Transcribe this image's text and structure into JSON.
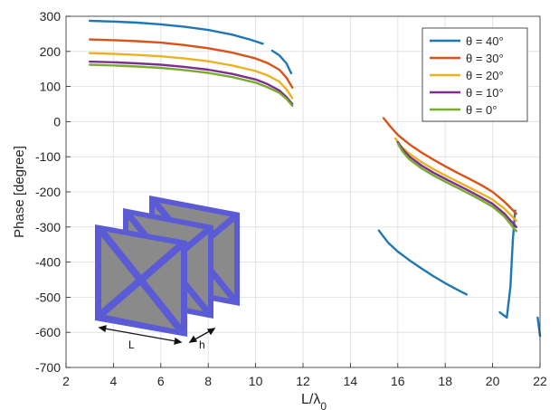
{
  "chart_data": {
    "type": "line",
    "xlabel": "L/λ0",
    "ylabel": "Phase [degree]",
    "xlim": [
      2,
      22
    ],
    "ylim": [
      -700,
      300
    ],
    "grid": true,
    "legend_position": "top-right",
    "x_ticks": [
      2,
      4,
      6,
      8,
      10,
      12,
      14,
      16,
      18,
      20,
      22
    ],
    "y_ticks": [
      300,
      200,
      100,
      0,
      -100,
      -200,
      -300,
      -400,
      -500,
      -600,
      -700
    ],
    "x_tick_labels": [
      "2",
      "4",
      "6",
      "8",
      "10",
      "12",
      "14",
      "16",
      "18",
      "20",
      "22"
    ],
    "y_tick_labels": [
      "300",
      "200",
      "100",
      "0",
      "-100",
      "-200",
      "-300",
      "-400",
      "-500",
      "-600",
      "-700"
    ],
    "series": [
      {
        "name": "θ = 40°",
        "color": "#1f77b4",
        "segments": [
          [
            [
              3.0,
              287
            ],
            [
              4.0,
              285
            ],
            [
              5.0,
              282
            ],
            [
              6.0,
              277
            ],
            [
              7.0,
              270
            ],
            [
              8.0,
              261
            ],
            [
              9.0,
              248
            ],
            [
              9.8,
              233
            ],
            [
              10.3,
              222
            ]
          ],
          [
            [
              10.7,
              202
            ],
            [
              11.0,
              189
            ],
            [
              11.3,
              166
            ],
            [
              11.5,
              138
            ]
          ],
          [
            [
              15.2,
              -310
            ],
            [
              15.6,
              -345
            ],
            [
              16.0,
              -370
            ],
            [
              16.5,
              -395
            ],
            [
              17.0,
              -418
            ],
            [
              17.5,
              -440
            ],
            [
              18.0,
              -460
            ],
            [
              18.5,
              -478
            ],
            [
              18.9,
              -492
            ]
          ],
          [
            [
              20.3,
              -543
            ],
            [
              20.5,
              -553
            ],
            [
              20.6,
              -558
            ],
            [
              20.75,
              -470
            ],
            [
              20.85,
              -340
            ],
            [
              20.95,
              -253
            ]
          ],
          [
            [
              21.9,
              -558
            ],
            [
              22.0,
              -610
            ]
          ]
        ]
      },
      {
        "name": "θ = 30°",
        "color": "#d95319",
        "segments": [
          [
            [
              3.0,
              234
            ],
            [
              4.0,
              232
            ],
            [
              5.0,
              229
            ],
            [
              6.0,
              225
            ],
            [
              7.0,
              218
            ],
            [
              8.0,
              209
            ],
            [
              9.0,
              197
            ],
            [
              10.0,
              180
            ],
            [
              10.5,
              167
            ],
            [
              11.0,
              148
            ],
            [
              11.3,
              125
            ],
            [
              11.55,
              97
            ]
          ],
          [
            [
              15.4,
              10
            ],
            [
              15.7,
              -15
            ],
            [
              16.0,
              -38
            ],
            [
              16.5,
              -65
            ],
            [
              17.0,
              -88
            ],
            [
              17.5,
              -108
            ],
            [
              18.0,
              -127
            ],
            [
              18.5,
              -145
            ],
            [
              19.0,
              -162
            ],
            [
              19.5,
              -180
            ],
            [
              20.0,
              -200
            ],
            [
              20.5,
              -228
            ],
            [
              21.0,
              -262
            ]
          ]
        ]
      },
      {
        "name": "θ = 20°",
        "color": "#edb120",
        "segments": [
          [
            [
              3.0,
              195
            ],
            [
              4.0,
              193
            ],
            [
              5.0,
              190
            ],
            [
              6.0,
              186
            ],
            [
              7.0,
              180
            ],
            [
              8.0,
              172
            ],
            [
              9.0,
              160
            ],
            [
              10.0,
              144
            ],
            [
              10.5,
              132
            ],
            [
              11.0,
              114
            ],
            [
              11.3,
              92
            ],
            [
              11.55,
              67
            ]
          ],
          [
            [
              15.9,
              -48
            ],
            [
              16.1,
              -68
            ],
            [
              16.5,
              -92
            ],
            [
              17.0,
              -115
            ],
            [
              17.5,
              -135
            ],
            [
              18.0,
              -153
            ],
            [
              18.5,
              -170
            ],
            [
              19.0,
              -187
            ],
            [
              19.5,
              -204
            ],
            [
              20.0,
              -222
            ],
            [
              20.5,
              -248
            ],
            [
              21.0,
              -282
            ]
          ]
        ]
      },
      {
        "name": "θ = 10°",
        "color": "#7e2f8e",
        "segments": [
          [
            [
              3.0,
              171
            ],
            [
              4.0,
              169
            ],
            [
              5.0,
              166
            ],
            [
              6.0,
              162
            ],
            [
              7.0,
              156
            ],
            [
              8.0,
              148
            ],
            [
              9.0,
              136
            ],
            [
              10.0,
              120
            ],
            [
              10.5,
              107
            ],
            [
              11.0,
              89
            ],
            [
              11.3,
              70
            ],
            [
              11.55,
              50
            ]
          ],
          [
            [
              16.0,
              -58
            ],
            [
              16.2,
              -78
            ],
            [
              16.5,
              -100
            ],
            [
              17.0,
              -125
            ],
            [
              17.5,
              -145
            ],
            [
              18.0,
              -163
            ],
            [
              18.5,
              -180
            ],
            [
              19.0,
              -197
            ],
            [
              19.5,
              -215
            ],
            [
              20.0,
              -234
            ],
            [
              20.5,
              -262
            ],
            [
              21.0,
              -300
            ]
          ]
        ]
      },
      {
        "name": "θ = 0°",
        "color": "#77ac30",
        "segments": [
          [
            [
              3.0,
              162
            ],
            [
              4.0,
              160
            ],
            [
              5.0,
              157
            ],
            [
              6.0,
              153
            ],
            [
              7.0,
              147
            ],
            [
              8.0,
              139
            ],
            [
              9.0,
              127
            ],
            [
              10.0,
              111
            ],
            [
              10.5,
              98
            ],
            [
              11.0,
              82
            ],
            [
              11.3,
              65
            ],
            [
              11.55,
              45
            ]
          ],
          [
            [
              16.0,
              -62
            ],
            [
              16.2,
              -85
            ],
            [
              16.5,
              -108
            ],
            [
              17.0,
              -133
            ],
            [
              17.5,
              -153
            ],
            [
              18.0,
              -171
            ],
            [
              18.5,
              -188
            ],
            [
              19.0,
              -205
            ],
            [
              19.5,
              -223
            ],
            [
              20.0,
              -242
            ],
            [
              20.5,
              -270
            ],
            [
              21.0,
              -312
            ]
          ]
        ]
      }
    ],
    "inset_labels": [
      "L",
      "h"
    ]
  }
}
